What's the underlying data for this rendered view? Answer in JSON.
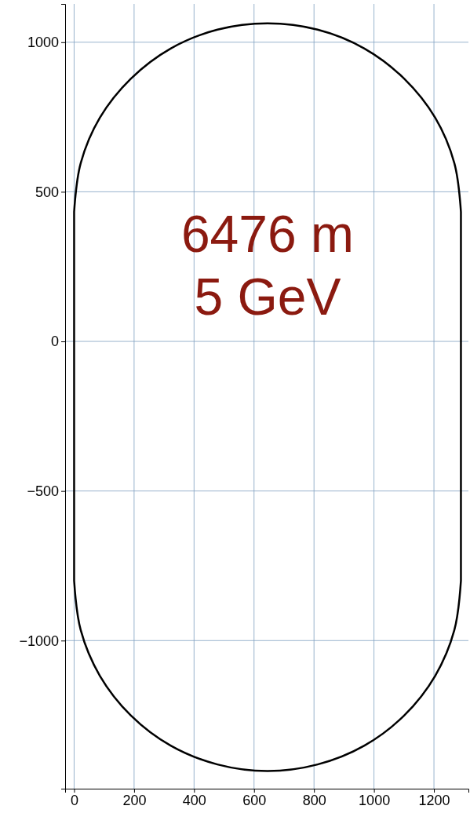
{
  "chart_data": {
    "type": "line",
    "xlim": [
      -30,
      1315
    ],
    "ylim": [
      -1495,
      1128
    ],
    "xticks": [
      0,
      200,
      400,
      600,
      800,
      1000,
      1200
    ],
    "yticks": [
      {
        "value": -1000,
        "label": "−1000"
      },
      {
        "value": -500,
        "label": "−500"
      },
      0,
      500,
      1000
    ],
    "grid": true,
    "marker": "none",
    "line_style": "solid",
    "annotations": [
      "6476 m",
      "5 GeV"
    ],
    "series": [
      {
        "color": "#000000",
        "x": [
          0,
          22,
          86,
          189,
          322,
          478,
          645,
          812,
          968,
          1101,
          1204,
          1268,
          1290
        ],
        "values": [
          433,
          596,
          748,
          878,
          979,
          1042,
          1063,
          1042,
          979,
          878,
          748,
          596,
          433
        ]
      },
      {
        "color": "#000000",
        "x": [
          1290,
          1290
        ],
        "values": [
          433,
          -800
        ]
      },
      {
        "color": "#000000",
        "x": [
          0,
          22,
          86,
          189,
          322,
          478,
          645,
          812,
          968,
          1101,
          1204,
          1268,
          1290
        ],
        "values": [
          -800,
          -965,
          -1118,
          -1250,
          -1351,
          -1414,
          -1436,
          -1414,
          -1351,
          -1250,
          -1118,
          -965,
          -800
        ]
      },
      {
        "color": "#000000",
        "x": [
          0,
          0
        ],
        "values": [
          -800,
          433
        ]
      }
    ]
  }
}
